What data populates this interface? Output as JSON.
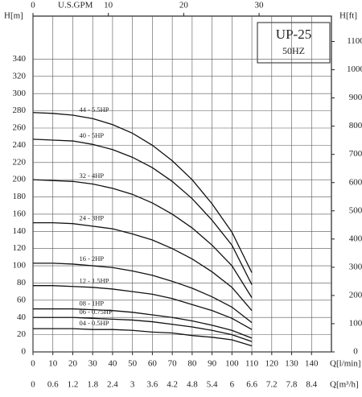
{
  "chart_data": {
    "type": "line",
    "title": "UP-25",
    "subtitle": "50HZ",
    "ylabel": "H[m]",
    "y2label": "H[ft]",
    "xlabel": "Q[l/min]",
    "x2label": "Q[m³/h]",
    "x3label": "U.S.GPM",
    "x": [
      0,
      10,
      20,
      30,
      40,
      50,
      60,
      70,
      80,
      90,
      100,
      110
    ],
    "xlim": [
      0,
      150
    ],
    "xticks": [
      0,
      10,
      20,
      30,
      40,
      50,
      60,
      70,
      80,
      90,
      100,
      110,
      120,
      130,
      140
    ],
    "x2lim": [
      0,
      9
    ],
    "x2ticks": [
      0,
      0.6,
      1.2,
      1.8,
      2.4,
      3,
      3.6,
      4.2,
      4.8,
      5.4,
      6,
      6.6,
      7.2,
      7.8,
      8.4
    ],
    "x3lim": [
      0,
      39.6
    ],
    "x3ticks": [
      0,
      10,
      20,
      30
    ],
    "ylim": [
      0,
      390
    ],
    "yticks": [
      0,
      20,
      40,
      60,
      80,
      100,
      120,
      140,
      160,
      180,
      200,
      220,
      240,
      260,
      280,
      300,
      320,
      340
    ],
    "y2lim": [
      0,
      1190
    ],
    "y2ticks": [
      0,
      100,
      200,
      300,
      400,
      500,
      600,
      700,
      800,
      900,
      1000,
      1100
    ],
    "grid": true,
    "series": [
      {
        "name": "44 - 5.5HP",
        "color": "#111111",
        "values": [
          278,
          277,
          275,
          271,
          264,
          254,
          240,
          222,
          200,
          172,
          139,
          92
        ]
      },
      {
        "name": "40 - 5HP",
        "color": "#111111",
        "values": [
          247,
          246,
          245,
          241,
          235,
          226,
          214,
          198,
          178,
          153,
          124,
          78
        ]
      },
      {
        "name": "32 - 4HP",
        "color": "#111111",
        "values": [
          200,
          199,
          198,
          195,
          190,
          183,
          173,
          160,
          144,
          124,
          100,
          63
        ]
      },
      {
        "name": "24 - 3HP",
        "color": "#111111",
        "values": [
          150,
          150,
          149,
          146,
          143,
          137,
          130,
          120,
          108,
          93,
          75,
          48
        ]
      },
      {
        "name": "16 - 2HP",
        "color": "#111111",
        "values": [
          103,
          103,
          102,
          100,
          98,
          94,
          89,
          82,
          74,
          64,
          52,
          34
        ]
      },
      {
        "name": "12 - 1.5HP",
        "color": "#111111",
        "values": [
          77,
          77,
          76,
          75,
          73,
          70,
          67,
          62,
          55,
          48,
          39,
          26
        ]
      },
      {
        "name": "08 - 1HP",
        "color": "#111111",
        "values": [
          50,
          50,
          50,
          49,
          48,
          46,
          43,
          40,
          36,
          31,
          25,
          16
        ]
      },
      {
        "name": "06 - 0.75HP",
        "color": "#111111",
        "values": [
          40,
          40,
          40,
          39,
          38,
          37,
          35,
          32,
          29,
          25,
          20,
          12
        ]
      },
      {
        "name": "04 - 0.5HP",
        "color": "#111111",
        "values": [
          27,
          27,
          27,
          26,
          26,
          25,
          23,
          22,
          19,
          17,
          14,
          7
        ]
      }
    ]
  }
}
